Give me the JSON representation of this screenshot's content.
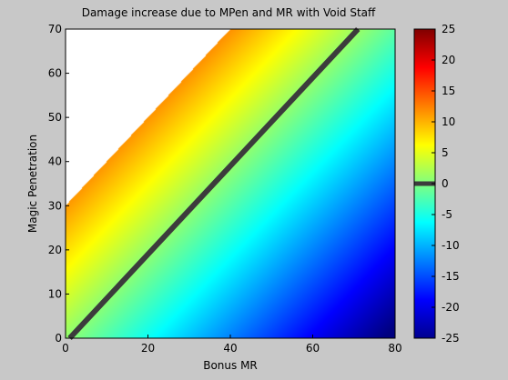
{
  "chart_data": {
    "type": "heatmap",
    "title": "Damage increase due to MPen and MR with Void Staff",
    "xlabel": "Bonus MR",
    "ylabel": "Magic Penetration",
    "xlim": [
      0,
      80
    ],
    "ylim": [
      0,
      70
    ],
    "x_ticks": [
      "0",
      "20",
      "40",
      "60",
      "80"
    ],
    "y_ticks": [
      "0",
      "10",
      "20",
      "30",
      "40",
      "50",
      "60",
      "70"
    ],
    "colormap": "jet",
    "color_range": [
      -25,
      25
    ],
    "colorbar_ticks": [
      "25",
      "20",
      "15",
      "10",
      "5",
      "0",
      "-5",
      "-10",
      "-15",
      "-20",
      "-25"
    ],
    "background_color": "#c8c8c8",
    "undefined_region_color": "#ffffff",
    "zero_contour": {
      "value": 0,
      "color": "#3c3c3c",
      "points": [
        [
          1,
          0
        ],
        [
          71,
          70
        ]
      ]
    },
    "undefined_region_boundary": [
      [
        0,
        30
      ],
      [
        40,
        70
      ]
    ],
    "surface_samples": [
      {
        "x": 0,
        "y": 0,
        "value": -2
      },
      {
        "x": 0,
        "y": 25,
        "value": 11
      },
      {
        "x": 0,
        "y": 29,
        "value": 13
      },
      {
        "x": 40,
        "y": 0,
        "value": -14
      },
      {
        "x": 40,
        "y": 40,
        "value": 0
      },
      {
        "x": 40,
        "y": 69,
        "value": 13
      },
      {
        "x": 80,
        "y": 0,
        "value": -23
      },
      {
        "x": 80,
        "y": 70,
        "value": -4
      }
    ]
  }
}
